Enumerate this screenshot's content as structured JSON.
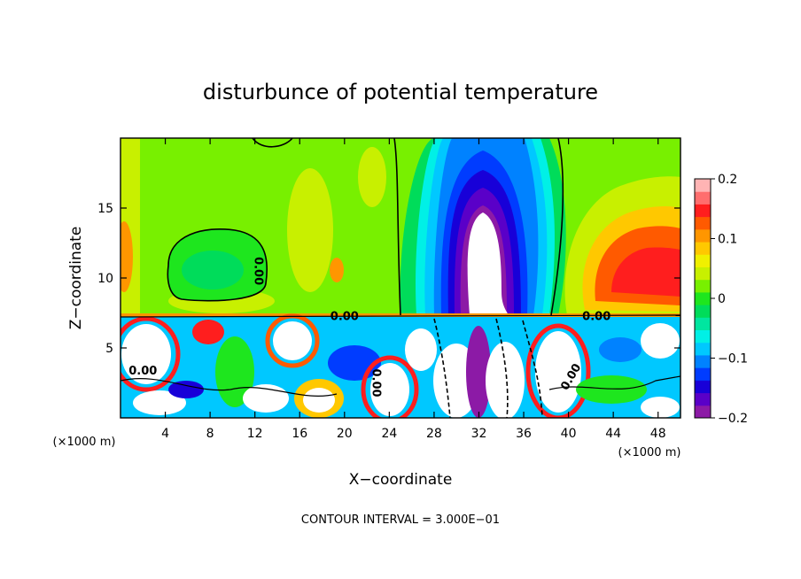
{
  "chart_data": {
    "type": "heatmap",
    "title": "disturbunce of potential temperature",
    "xlabel": "X−coordinate",
    "ylabel": "Z−coordinate",
    "x_unit_label": "(×1000 m)",
    "x_unit_label_right": "(×1000 m)",
    "footer": "CONTOUR INTERVAL = 3.000E−01",
    "xlim": [
      0,
      50
    ],
    "ylim": [
      0,
      20
    ],
    "x_ticks": [
      4,
      8,
      12,
      16,
      20,
      24,
      28,
      32,
      36,
      40,
      44,
      48
    ],
    "x_tick_labels": [
      "4",
      "8",
      "12",
      "16",
      "20",
      "24",
      "28",
      "32",
      "36",
      "40",
      "44",
      "48"
    ],
    "y_ticks": [
      5,
      10,
      15
    ],
    "y_tick_labels": [
      "5",
      "10",
      "15"
    ],
    "colorbar": {
      "min": -0.2,
      "max": 0.2,
      "ticks": [
        0.2,
        0.1,
        0,
        -0.1,
        -0.2
      ],
      "tick_labels": [
        "0.2",
        "0.1",
        "0",
        "−0.1",
        "−0.2"
      ],
      "colors": [
        "#8c1aa6",
        "#5a00c8",
        "#1800d8",
        "#003cff",
        "#0082ff",
        "#00c8ff",
        "#00f0e6",
        "#00e6a0",
        "#00dc5a",
        "#1ee61e",
        "#78f000",
        "#c8f000",
        "#f0f000",
        "#ffc800",
        "#ff9600",
        "#ff5a00",
        "#ff1e1e",
        "#ff6e6e",
        "#ffb4b4"
      ]
    },
    "contour_labels": [
      {
        "text": "0.00",
        "x": 12,
        "z": 10.5,
        "rot": 90
      },
      {
        "text": "0.00",
        "x": 2,
        "z": 3.1,
        "rot": 0
      },
      {
        "text": "0.00",
        "x": 20,
        "z": 7.0,
        "rot": 0
      },
      {
        "text": "0.00",
        "x": 42.5,
        "z": 7.0,
        "rot": 0
      },
      {
        "text": "0.00",
        "x": 22.5,
        "z": 2.5,
        "rot": 90
      },
      {
        "text": "0.00",
        "x": 40.5,
        "z": 2.8,
        "rot": -60
      }
    ]
  }
}
